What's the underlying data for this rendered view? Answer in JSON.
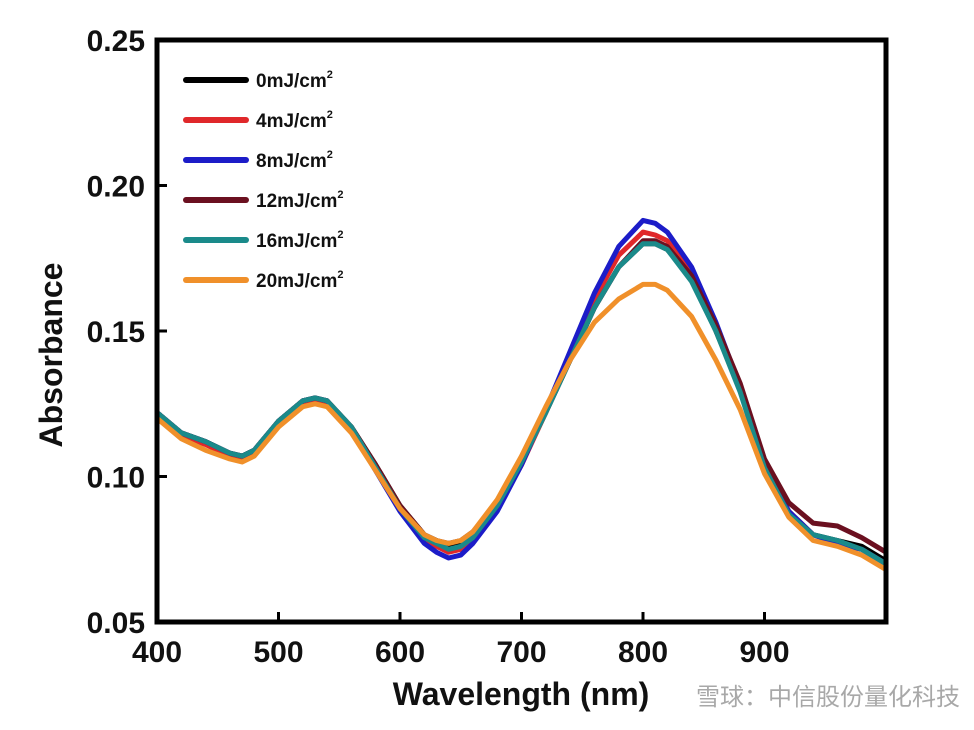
{
  "chart_data": {
    "type": "line",
    "xlabel": "Wavelength (nm)",
    "ylabel": "Absorbance",
    "xlim": [
      400,
      1000
    ],
    "ylim": [
      0.05,
      0.25
    ],
    "xticks": [
      400,
      500,
      600,
      700,
      800,
      900
    ],
    "yticks": [
      0.05,
      0.1,
      0.15,
      0.2,
      0.25
    ],
    "ytick_labels": [
      "0.05",
      "0.10",
      "0.15",
      "0.20",
      "0.25"
    ],
    "grid": false,
    "legend_position": "top-left",
    "series": [
      {
        "name": "0mJ/cm",
        "sup": "2",
        "color": "#000000",
        "x": [
          400,
          420,
          440,
          460,
          470,
          480,
          500,
          520,
          530,
          540,
          560,
          580,
          600,
          620,
          630,
          640,
          650,
          660,
          680,
          700,
          720,
          740,
          760,
          780,
          800,
          810,
          820,
          840,
          860,
          880,
          900,
          920,
          940,
          960,
          980,
          1000
        ],
        "y": [
          0.122,
          0.115,
          0.112,
          0.108,
          0.107,
          0.109,
          0.119,
          0.126,
          0.127,
          0.126,
          0.117,
          0.104,
          0.09,
          0.08,
          0.078,
          0.076,
          0.077,
          0.08,
          0.09,
          0.105,
          0.122,
          0.14,
          0.158,
          0.172,
          0.18,
          0.18,
          0.178,
          0.168,
          0.15,
          0.13,
          0.104,
          0.088,
          0.08,
          0.078,
          0.076,
          0.071
        ]
      },
      {
        "name": "4mJ/cm",
        "sup": "2",
        "color": "#e0282a",
        "x": [
          400,
          420,
          440,
          460,
          470,
          480,
          500,
          520,
          530,
          540,
          560,
          580,
          600,
          620,
          630,
          640,
          650,
          660,
          680,
          700,
          720,
          740,
          760,
          780,
          800,
          810,
          820,
          840,
          860,
          880,
          900,
          920,
          940,
          960,
          980,
          1000
        ],
        "y": [
          0.121,
          0.114,
          0.111,
          0.107,
          0.106,
          0.108,
          0.118,
          0.125,
          0.126,
          0.125,
          0.116,
          0.103,
          0.089,
          0.079,
          0.076,
          0.074,
          0.075,
          0.078,
          0.089,
          0.104,
          0.122,
          0.141,
          0.161,
          0.176,
          0.184,
          0.183,
          0.181,
          0.17,
          0.152,
          0.131,
          0.104,
          0.088,
          0.08,
          0.077,
          0.075,
          0.07
        ]
      },
      {
        "name": "8mJ/cm",
        "sup": "2",
        "color": "#1c1cc8",
        "x": [
          400,
          420,
          440,
          460,
          470,
          480,
          500,
          520,
          530,
          540,
          560,
          580,
          600,
          620,
          630,
          640,
          650,
          660,
          680,
          700,
          720,
          740,
          760,
          780,
          800,
          810,
          820,
          840,
          860,
          880,
          900,
          920,
          940,
          960,
          980,
          1000
        ],
        "y": [
          0.122,
          0.115,
          0.112,
          0.108,
          0.107,
          0.109,
          0.119,
          0.126,
          0.127,
          0.126,
          0.116,
          0.102,
          0.088,
          0.077,
          0.074,
          0.072,
          0.073,
          0.077,
          0.088,
          0.104,
          0.123,
          0.143,
          0.163,
          0.179,
          0.188,
          0.187,
          0.184,
          0.172,
          0.153,
          0.131,
          0.104,
          0.088,
          0.08,
          0.077,
          0.075,
          0.07
        ]
      },
      {
        "name": "12mJ/cm",
        "sup": "2",
        "color": "#6b1020",
        "x": [
          400,
          420,
          440,
          460,
          470,
          480,
          500,
          520,
          530,
          540,
          560,
          580,
          600,
          620,
          630,
          640,
          650,
          660,
          680,
          700,
          720,
          740,
          760,
          780,
          800,
          810,
          820,
          840,
          860,
          880,
          900,
          920,
          940,
          960,
          980,
          1000
        ],
        "y": [
          0.122,
          0.115,
          0.112,
          0.108,
          0.107,
          0.109,
          0.119,
          0.126,
          0.127,
          0.126,
          0.117,
          0.104,
          0.09,
          0.08,
          0.078,
          0.077,
          0.078,
          0.081,
          0.091,
          0.106,
          0.123,
          0.14,
          0.158,
          0.172,
          0.181,
          0.181,
          0.179,
          0.169,
          0.152,
          0.132,
          0.106,
          0.091,
          0.084,
          0.083,
          0.079,
          0.074
        ]
      },
      {
        "name": "16mJ/cm",
        "sup": "2",
        "color": "#1a8a8a",
        "x": [
          400,
          420,
          440,
          460,
          470,
          480,
          500,
          520,
          530,
          540,
          560,
          580,
          600,
          620,
          630,
          640,
          650,
          660,
          680,
          700,
          720,
          740,
          760,
          780,
          800,
          810,
          820,
          840,
          860,
          880,
          900,
          920,
          940,
          960,
          980,
          1000
        ],
        "y": [
          0.122,
          0.115,
          0.112,
          0.108,
          0.107,
          0.109,
          0.119,
          0.126,
          0.127,
          0.126,
          0.117,
          0.103,
          0.089,
          0.079,
          0.077,
          0.075,
          0.076,
          0.079,
          0.09,
          0.105,
          0.122,
          0.14,
          0.158,
          0.172,
          0.18,
          0.18,
          0.178,
          0.167,
          0.15,
          0.129,
          0.103,
          0.087,
          0.08,
          0.078,
          0.075,
          0.07
        ]
      },
      {
        "name": "20mJ/cm",
        "sup": "2",
        "color": "#f0902a",
        "x": [
          400,
          420,
          440,
          460,
          470,
          480,
          500,
          520,
          530,
          540,
          560,
          580,
          600,
          620,
          630,
          640,
          650,
          660,
          680,
          700,
          720,
          740,
          760,
          780,
          800,
          810,
          820,
          840,
          860,
          880,
          900,
          920,
          940,
          960,
          980,
          1000
        ],
        "y": [
          0.12,
          0.113,
          0.109,
          0.106,
          0.105,
          0.107,
          0.117,
          0.124,
          0.125,
          0.124,
          0.115,
          0.102,
          0.089,
          0.08,
          0.078,
          0.077,
          0.078,
          0.081,
          0.092,
          0.107,
          0.124,
          0.14,
          0.153,
          0.161,
          0.166,
          0.166,
          0.164,
          0.155,
          0.14,
          0.123,
          0.101,
          0.086,
          0.078,
          0.076,
          0.073,
          0.068
        ]
      }
    ]
  },
  "watermark": "雪球：中信股份量化科技"
}
